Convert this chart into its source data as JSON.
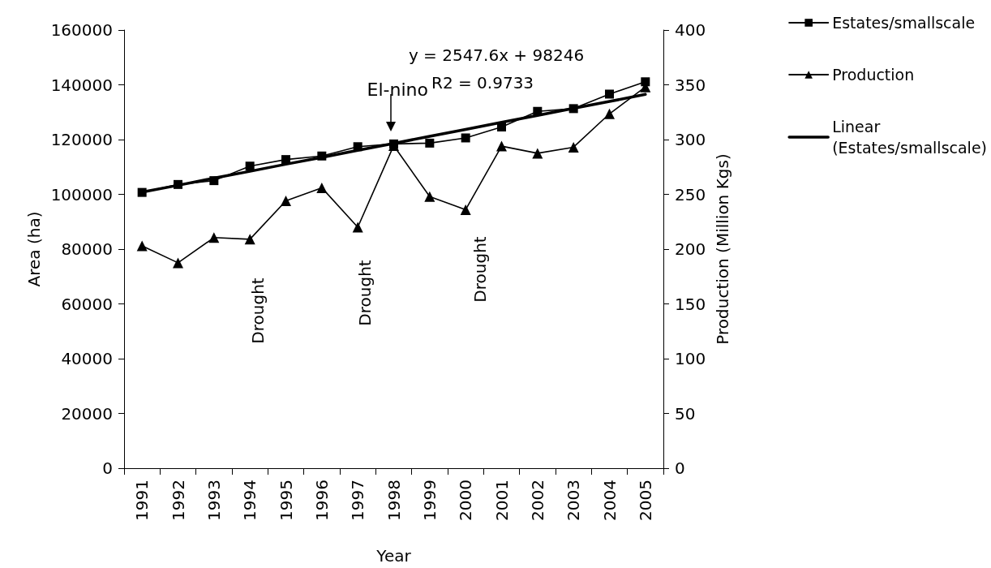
{
  "chart_data": {
    "type": "line",
    "xlabel": "Year",
    "ylabel": "Area (ha)",
    "y2label": "Production (Million Kgs)",
    "categories": [
      "1991",
      "1992",
      "1993",
      "1994",
      "1995",
      "1996",
      "1997",
      "1998",
      "1999",
      "2000",
      "2001",
      "2002",
      "2003",
      "2004",
      "2005"
    ],
    "series": [
      {
        "name": "Estates/smallscale",
        "color": "#000000",
        "marker": "square",
        "values": [
          100700,
          103600,
          105000,
          110300,
          112700,
          114000,
          117400,
          118400,
          118700,
          120600,
          124600,
          130300,
          131300,
          136600,
          141100
        ]
      },
      {
        "name": "Production",
        "color": "#000000",
        "marker": "triangle",
        "axis": "y2",
        "values": [
          203,
          187.5,
          210.5,
          209,
          244,
          256,
          220,
          294.5,
          248,
          236,
          294,
          287.5,
          293,
          323.5,
          348
        ]
      },
      {
        "name": "Linear (Estates/smallscale)",
        "color": "#000000",
        "marker": "none",
        "values": [
          100800,
          103300,
          105900,
          108400,
          111000,
          113500,
          116100,
          118600,
          121200,
          123700,
          126300,
          128800,
          131400,
          133900,
          136500
        ]
      }
    ],
    "ylim": [
      0,
      160000
    ],
    "yticks": [
      0,
      20000,
      40000,
      60000,
      80000,
      100000,
      120000,
      140000,
      160000
    ],
    "y2lim": [
      0,
      400
    ],
    "y2ticks": [
      0,
      50,
      100,
      150,
      200,
      250,
      300,
      350,
      400
    ],
    "grid": false,
    "legend": "top right",
    "annotations": [
      "Drought",
      "Drought",
      "Drought",
      "El-nino",
      "y = 2547.6x + 98246",
      "R2 = 0.9733"
    ]
  }
}
